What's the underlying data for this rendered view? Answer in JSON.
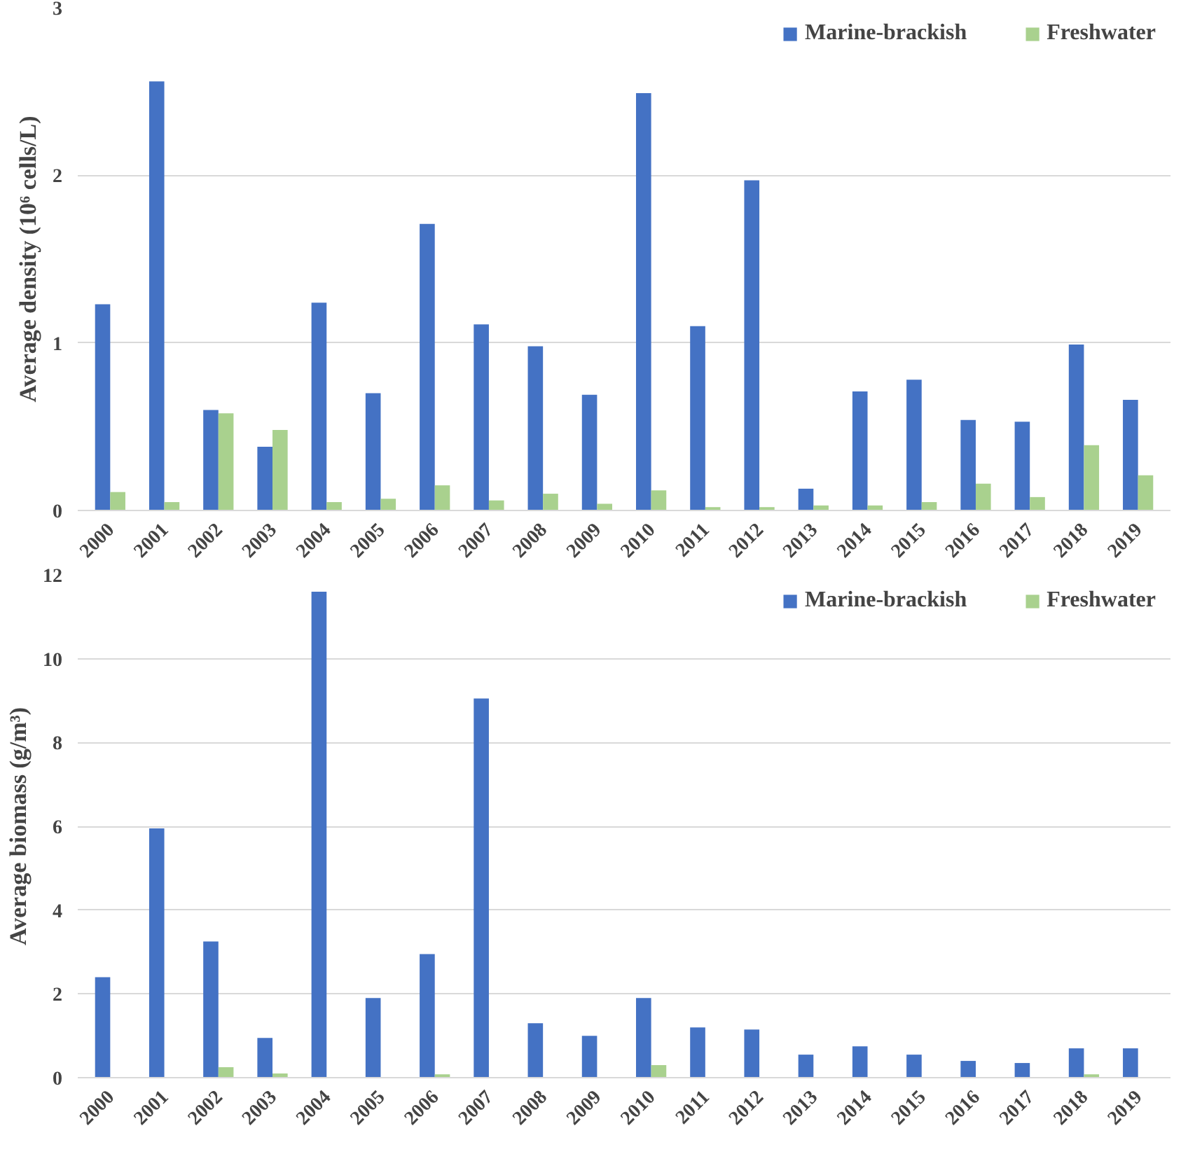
{
  "chart_data": [
    {
      "type": "bar",
      "ylabel": "Average density (10⁶ cells/L)",
      "categories": [
        "2000",
        "2001",
        "2002",
        "2003",
        "2004",
        "2005",
        "2006",
        "2007",
        "2008",
        "2009",
        "2010",
        "2011",
        "2012",
        "2013",
        "2014",
        "2015",
        "2016",
        "2017",
        "2018",
        "2019"
      ],
      "series": [
        {
          "name": "Marine-brackish",
          "color": "#4472c4",
          "values": [
            1.23,
            2.56,
            0.6,
            0.38,
            1.24,
            0.7,
            1.71,
            1.11,
            0.98,
            0.69,
            2.49,
            1.1,
            1.97,
            0.13,
            0.71,
            0.78,
            0.54,
            0.53,
            0.99,
            0.66
          ]
        },
        {
          "name": "Freshwater",
          "color": "#a9d18e",
          "values": [
            0.11,
            0.05,
            0.58,
            0.48,
            0.05,
            0.07,
            0.15,
            0.06,
            0.1,
            0.04,
            0.12,
            0.02,
            0.02,
            0.03,
            0.03,
            0.05,
            0.16,
            0.08,
            0.39,
            0.21
          ]
        }
      ],
      "ylim": [
        0,
        3
      ],
      "yticks": [
        0,
        1,
        2,
        3
      ],
      "grid": "y",
      "legend": "top right"
    },
    {
      "type": "bar",
      "ylabel": "Average biomass (g/m³)",
      "categories": [
        "2000",
        "2001",
        "2002",
        "2003",
        "2004",
        "2005",
        "2006",
        "2007",
        "2008",
        "2009",
        "2010",
        "2011",
        "2012",
        "2013",
        "2014",
        "2015",
        "2016",
        "2017",
        "2018",
        "2019"
      ],
      "series": [
        {
          "name": "Marine-brackish",
          "color": "#4472c4",
          "values": [
            2.4,
            5.95,
            3.25,
            0.95,
            11.6,
            1.9,
            2.95,
            9.05,
            1.3,
            1.0,
            1.9,
            1.2,
            1.15,
            0.55,
            0.75,
            0.55,
            0.4,
            0.35,
            0.7,
            0.7
          ]
        },
        {
          "name": "Freshwater",
          "color": "#a9d18e",
          "values": [
            0,
            0,
            0.25,
            0.1,
            0,
            0,
            0.08,
            0,
            0,
            0,
            0.3,
            0,
            0,
            0,
            0,
            0,
            0,
            0,
            0.08,
            0
          ]
        }
      ],
      "ylim": [
        0,
        12
      ],
      "yticks": [
        0,
        2,
        4,
        6,
        8,
        10,
        12
      ],
      "grid": "y",
      "legend": "top right"
    }
  ]
}
